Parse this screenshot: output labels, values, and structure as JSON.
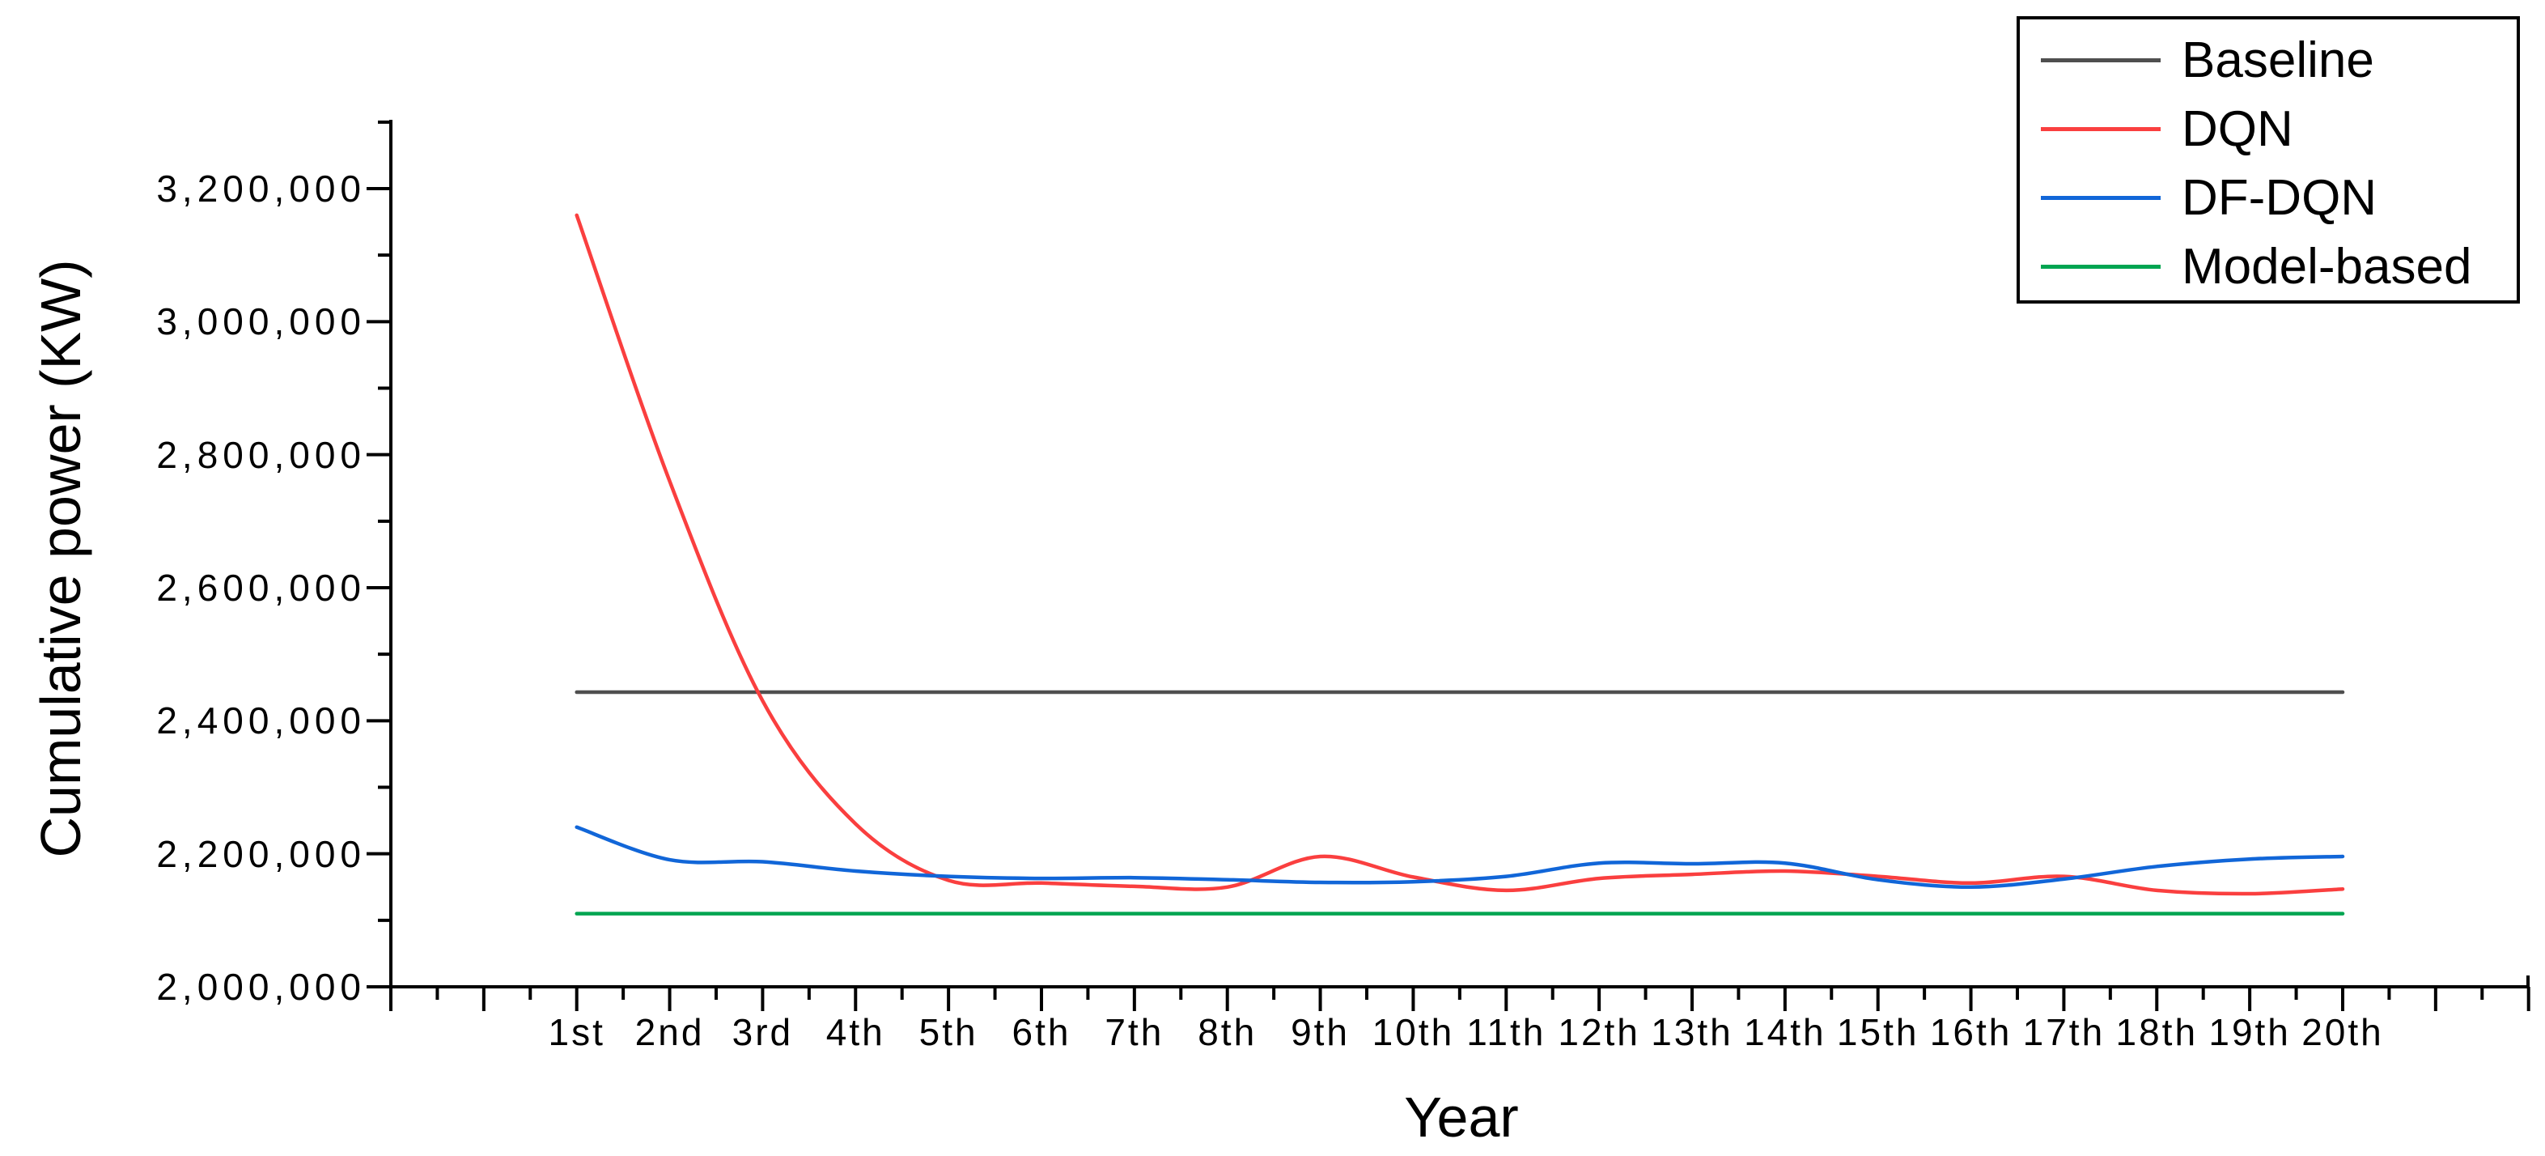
{
  "figure": {
    "background": "#ffffff"
  },
  "chart_data": {
    "type": "line",
    "title": "",
    "xlabel": "Year",
    "ylabel": "Cumulative power (KW)",
    "x_categories": [
      "1st",
      "2nd",
      "3rd",
      "4th",
      "5th",
      "6th",
      "7th",
      "8th",
      "9th",
      "10th",
      "11th",
      "12th",
      "13th",
      "14th",
      "15th",
      "16th",
      "17th",
      "18th",
      "19th",
      "20th"
    ],
    "y_tick_labels": [
      "2,000,000",
      "2,200,000",
      "2,400,000",
      "2,600,000",
      "2,800,000",
      "3,000,000",
      "3,200,000"
    ],
    "y_tick_values": [
      2000000,
      2200000,
      2400000,
      2600000,
      2800000,
      3000000,
      3200000
    ],
    "ylim": [
      2000000,
      3300000
    ],
    "grid": false,
    "legend_position": "top-right",
    "axis_color": "#000000",
    "series": [
      {
        "name": "Baseline",
        "color": "#4f4f4f",
        "shape": "flat",
        "values": [
          2443000,
          2443000,
          2443000,
          2443000,
          2443000,
          2443000,
          2443000,
          2443000,
          2443000,
          2443000,
          2443000,
          2443000,
          2443000,
          2443000,
          2443000,
          2443000,
          2443000,
          2443000,
          2443000,
          2443000
        ]
      },
      {
        "name": "DQN",
        "color": "#fa3f3f",
        "shape": "smooth",
        "values": [
          3160000,
          2760000,
          2430000,
          2245000,
          2160000,
          2156000,
          2151000,
          2150000,
          2196000,
          2165000,
          2145000,
          2163000,
          2169000,
          2174000,
          2166000,
          2156000,
          2166000,
          2145000,
          2140000,
          2147000
        ]
      },
      {
        "name": "DF-DQN",
        "color": "#1166d8",
        "shape": "smooth",
        "values": [
          2240000,
          2191000,
          2188000,
          2174000,
          2166000,
          2163000,
          2164000,
          2161000,
          2157000,
          2158000,
          2166000,
          2186000,
          2185000,
          2186000,
          2161000,
          2150000,
          2162000,
          2181000,
          2192000,
          2196000
        ]
      },
      {
        "name": "Model-based",
        "color": "#00a551",
        "shape": "flat",
        "values": [
          2110000,
          2110000,
          2110000,
          2110000,
          2110000,
          2110000,
          2110000,
          2110000,
          2110000,
          2110000,
          2110000,
          2110000,
          2110000,
          2110000,
          2110000,
          2110000,
          2110000,
          2110000,
          2110000,
          2110000
        ]
      }
    ]
  }
}
